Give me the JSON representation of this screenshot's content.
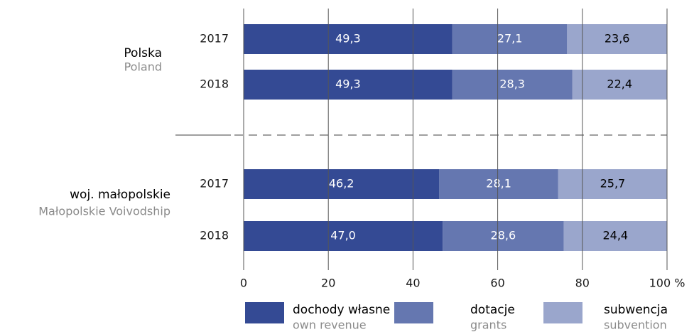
{
  "chart_data": {
    "type": "stacked-bar-horizontal",
    "categories": [
      "2017",
      "2018",
      "2017",
      "2018"
    ],
    "groups": [
      {
        "label": "Polska",
        "sublabel": "Poland"
      },
      {
        "label": "woj. małopolskie",
        "sublabel": "Małopolskie Voivodship"
      }
    ],
    "series": [
      {
        "name": "dochody własne",
        "subname": "own revenue",
        "color": "#344a94",
        "label_color": "#ffffff",
        "values": [
          49.3,
          49.3,
          46.2,
          47.0
        ],
        "value_labels": [
          "49,3",
          "49,3",
          "46,2",
          "47,0"
        ]
      },
      {
        "name": "dotacje",
        "subname": "grants",
        "color": "#6577b0",
        "label_color": "#ffffff",
        "values": [
          27.1,
          28.3,
          28.1,
          28.6
        ],
        "value_labels": [
          "27,1",
          "28,3",
          "28,1",
          "28,6"
        ]
      },
      {
        "name": "subwencja",
        "subname": "subvention",
        "color": "#9aa6cc",
        "label_color": "#000000",
        "values": [
          23.6,
          22.4,
          25.7,
          24.4
        ],
        "value_labels": [
          "23,6",
          "22,4",
          "25,7",
          "24,4"
        ]
      }
    ],
    "xlim": [
      0,
      100
    ],
    "xticks": [
      0,
      20,
      40,
      60,
      80,
      {
        "value": 100,
        "label": "100 %"
      }
    ]
  }
}
